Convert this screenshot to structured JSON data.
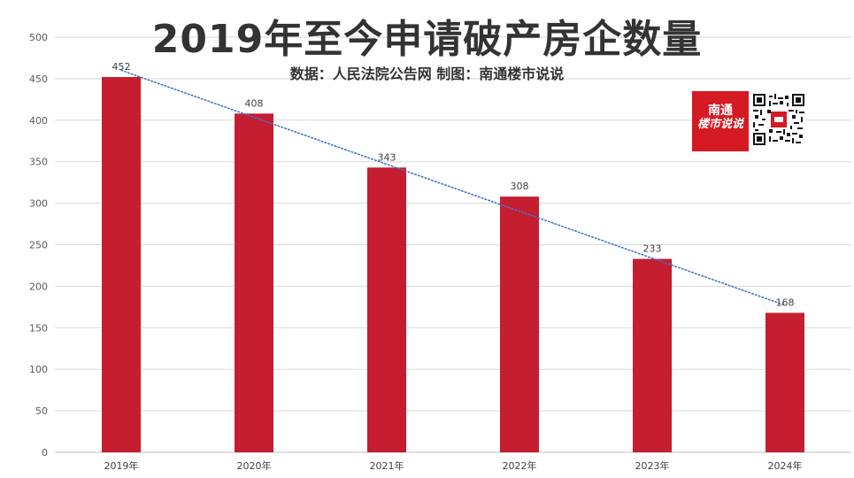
{
  "chart_data": {
    "type": "bar",
    "title": "2019年至今申请破产房企数量",
    "subtitle": "数据：人民法院公告网 制图：南通楼市说说",
    "categories": [
      "2019年",
      "2020年",
      "2021年",
      "2022年",
      "2023年",
      "2024年"
    ],
    "values": [
      452,
      408,
      343,
      308,
      233,
      168
    ],
    "data_labels": [
      "452",
      "408",
      "343",
      "308",
      "233",
      "168"
    ],
    "ylim": [
      0,
      500
    ],
    "yticks": [
      0,
      50,
      100,
      150,
      200,
      250,
      300,
      350,
      400,
      450,
      500
    ],
    "grid": true,
    "trendline": {
      "type": "linear",
      "style": "dotted"
    },
    "colors": {
      "bar": "#c41e30",
      "trendline": "#4472c4",
      "grid": "#d9d9d9"
    }
  },
  "logo": {
    "line1": "南通",
    "line2": "楼市说说"
  }
}
